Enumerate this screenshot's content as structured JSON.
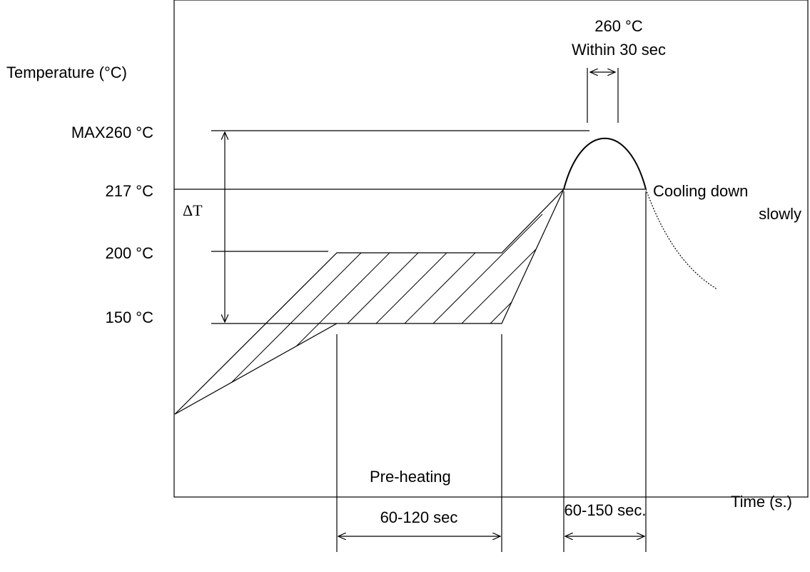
{
  "labels": {
    "y_axis": "Temperature (°C)",
    "x_axis": "Time (s.)",
    "t_max": "MAX260 °C",
    "t_217": "217 °C",
    "t_200": "200 °C",
    "t_150": "150 °C",
    "delta_t": "ΔT",
    "peak_temp": "260 °C",
    "peak_time": "Within 30 sec",
    "cooling_line1": "Cooling down",
    "cooling_line2": "slowly",
    "preheating": "Pre-heating",
    "preheat_duration": "60-120 sec",
    "reflow_duration": "60-150 sec."
  }
}
